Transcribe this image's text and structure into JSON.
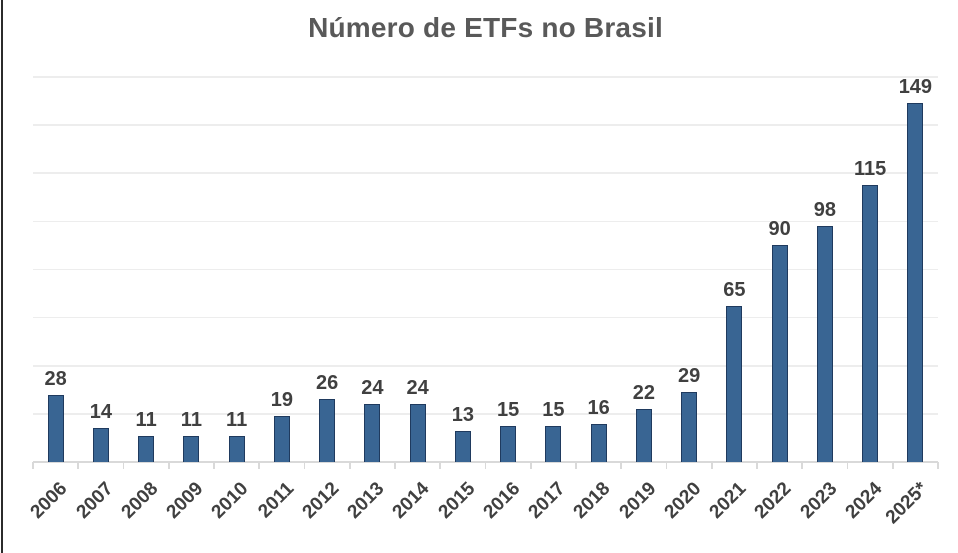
{
  "chart_data": {
    "type": "bar",
    "title": "Número de ETFs no Brasil",
    "categories": [
      "2006",
      "2007",
      "2008",
      "2009",
      "2010",
      "2011",
      "2012",
      "2013",
      "2014",
      "2015",
      "2016",
      "2017",
      "2018",
      "2019",
      "2020",
      "2021",
      "2022",
      "2023",
      "2024",
      "2025*"
    ],
    "values": [
      28,
      14,
      11,
      11,
      11,
      19,
      26,
      24,
      24,
      13,
      15,
      15,
      16,
      22,
      29,
      65,
      90,
      98,
      115,
      149
    ],
    "xlabel": "",
    "ylabel": "",
    "ylim": [
      0,
      160
    ],
    "gridline_step": 20,
    "grid": "horizontal-only",
    "legend": "none",
    "data_labels": "above-bars",
    "x_label_rotation_deg": -45,
    "colors": {
      "bar_fill": "#396593",
      "bar_border": "#1f3a5e",
      "title_text": "#595959",
      "data_label_text": "#404040",
      "axis_label_text": "#404040",
      "gridline": "#ededed",
      "axis_line": "#d9d9d9",
      "background": "#ffffff",
      "left_edge_line": "#2b2b2b"
    }
  }
}
